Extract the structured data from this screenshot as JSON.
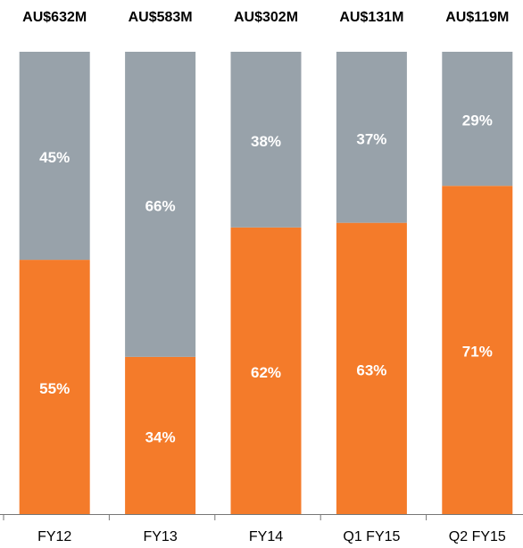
{
  "chart_data": {
    "type": "stacked_bar",
    "categories": [
      "FY12",
      "FY13",
      "FY14",
      "Q1 FY15",
      "Q2 FY15"
    ],
    "top_labels": [
      "AU$632M",
      "AU$583M",
      "AU$302M",
      "AU$131M",
      "AU$119M"
    ],
    "series": [
      {
        "color": "#f47b2a",
        "values": [
          55,
          34,
          62,
          63,
          71
        ],
        "value_labels": [
          "55%",
          "34%",
          "62%",
          "63%",
          "71%"
        ]
      },
      {
        "color": "#98a2aa",
        "values": [
          45,
          66,
          38,
          37,
          29
        ],
        "value_labels": [
          "45%",
          "66%",
          "38%",
          "37%",
          "29%"
        ]
      }
    ],
    "ylim": [
      0,
      100
    ]
  }
}
